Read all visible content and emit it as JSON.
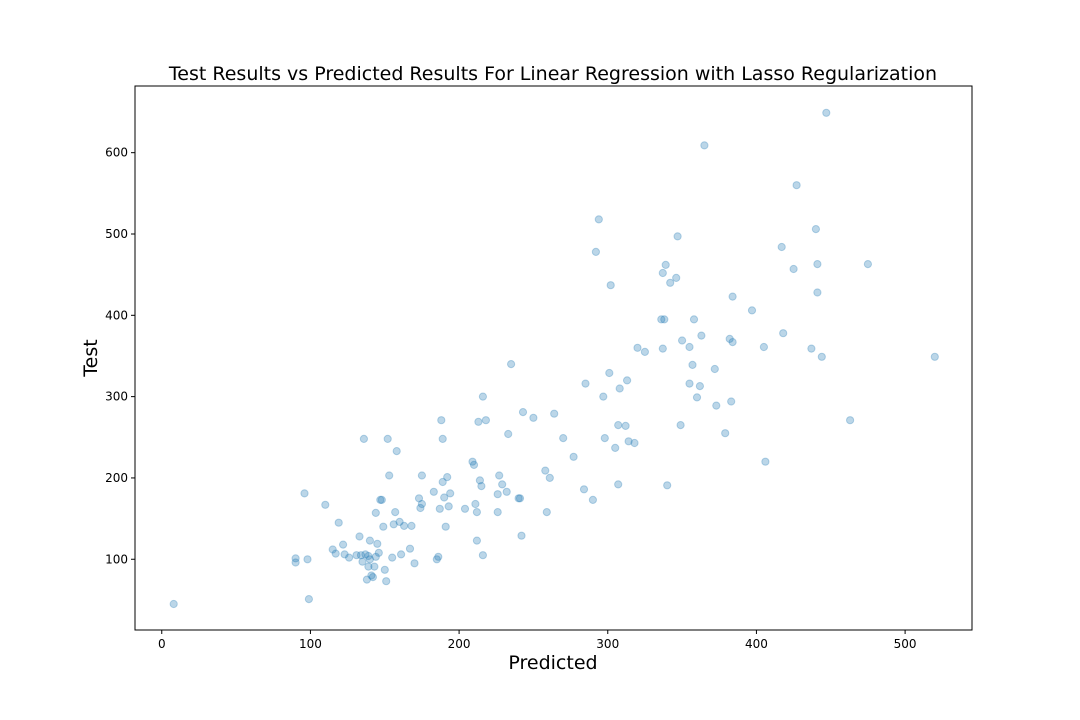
{
  "chart_data": {
    "type": "scatter",
    "title": "Test Results vs Predicted Results For Linear Regression with Lasso Regularization",
    "xlabel": "Predicted",
    "ylabel": "Test",
    "xlim": [
      -18,
      545
    ],
    "ylim": [
      13,
      682
    ],
    "xticks": [
      0,
      100,
      200,
      300,
      400,
      500
    ],
    "yticks": [
      100,
      200,
      300,
      400,
      500,
      600
    ],
    "grid": false,
    "marker_color": "#1f77b4",
    "marker_opacity": 0.3,
    "points": [
      [
        8,
        45
      ],
      [
        90,
        101
      ],
      [
        90,
        96
      ],
      [
        96,
        181
      ],
      [
        98,
        100
      ],
      [
        99,
        51
      ],
      [
        110,
        167
      ],
      [
        115,
        112
      ],
      [
        117,
        107
      ],
      [
        119,
        145
      ],
      [
        122,
        118
      ],
      [
        123,
        106
      ],
      [
        126,
        102
      ],
      [
        131,
        105
      ],
      [
        133,
        128
      ],
      [
        134,
        105
      ],
      [
        135,
        97
      ],
      [
        136,
        248
      ],
      [
        137,
        106
      ],
      [
        138,
        75
      ],
      [
        139,
        91
      ],
      [
        139,
        104
      ],
      [
        140,
        123
      ],
      [
        140,
        100
      ],
      [
        141,
        80
      ],
      [
        142,
        78
      ],
      [
        143,
        91
      ],
      [
        144,
        103
      ],
      [
        144,
        157
      ],
      [
        145,
        119
      ],
      [
        146,
        108
      ],
      [
        147,
        173
      ],
      [
        148,
        173
      ],
      [
        149,
        140
      ],
      [
        150,
        87
      ],
      [
        151,
        73
      ],
      [
        152,
        248
      ],
      [
        153,
        203
      ],
      [
        155,
        102
      ],
      [
        156,
        143
      ],
      [
        157,
        158
      ],
      [
        158,
        233
      ],
      [
        160,
        146
      ],
      [
        161,
        106
      ],
      [
        163,
        141
      ],
      [
        167,
        113
      ],
      [
        168,
        141
      ],
      [
        170,
        95
      ],
      [
        173,
        175
      ],
      [
        174,
        163
      ],
      [
        175,
        203
      ],
      [
        175,
        168
      ],
      [
        183,
        183
      ],
      [
        185,
        100
      ],
      [
        186,
        103
      ],
      [
        187,
        162
      ],
      [
        188,
        271
      ],
      [
        189,
        248
      ],
      [
        189,
        195
      ],
      [
        190,
        176
      ],
      [
        191,
        140
      ],
      [
        192,
        201
      ],
      [
        193,
        165
      ],
      [
        194,
        181
      ],
      [
        204,
        162
      ],
      [
        209,
        220
      ],
      [
        210,
        216
      ],
      [
        211,
        168
      ],
      [
        212,
        123
      ],
      [
        212,
        158
      ],
      [
        213,
        269
      ],
      [
        214,
        197
      ],
      [
        215,
        190
      ],
      [
        216,
        105
      ],
      [
        216,
        300
      ],
      [
        218,
        271
      ],
      [
        226,
        180
      ],
      [
        226,
        158
      ],
      [
        227,
        203
      ],
      [
        229,
        192
      ],
      [
        232,
        183
      ],
      [
        233,
        254
      ],
      [
        235,
        340
      ],
      [
        240,
        175
      ],
      [
        241,
        175
      ],
      [
        242,
        129
      ],
      [
        243,
        281
      ],
      [
        250,
        274
      ],
      [
        258,
        209
      ],
      [
        259,
        158
      ],
      [
        261,
        200
      ],
      [
        264,
        279
      ],
      [
        270,
        249
      ],
      [
        277,
        226
      ],
      [
        284,
        186
      ],
      [
        285,
        316
      ],
      [
        290,
        173
      ],
      [
        292,
        478
      ],
      [
        294,
        518
      ],
      [
        297,
        300
      ],
      [
        298,
        249
      ],
      [
        301,
        329
      ],
      [
        302,
        437
      ],
      [
        305,
        237
      ],
      [
        307,
        192
      ],
      [
        307,
        265
      ],
      [
        308,
        310
      ],
      [
        312,
        264
      ],
      [
        313,
        320
      ],
      [
        314,
        245
      ],
      [
        318,
        243
      ],
      [
        320,
        360
      ],
      [
        325,
        355
      ],
      [
        336,
        395
      ],
      [
        337,
        359
      ],
      [
        337,
        452
      ],
      [
        338,
        395
      ],
      [
        339,
        462
      ],
      [
        340,
        191
      ],
      [
        342,
        440
      ],
      [
        346,
        446
      ],
      [
        347,
        497
      ],
      [
        349,
        265
      ],
      [
        350,
        369
      ],
      [
        355,
        316
      ],
      [
        355,
        361
      ],
      [
        357,
        339
      ],
      [
        358,
        395
      ],
      [
        360,
        299
      ],
      [
        362,
        313
      ],
      [
        363,
        375
      ],
      [
        365,
        609
      ],
      [
        372,
        334
      ],
      [
        373,
        289
      ],
      [
        379,
        255
      ],
      [
        382,
        371
      ],
      [
        383,
        294
      ],
      [
        384,
        423
      ],
      [
        384,
        367
      ],
      [
        397,
        406
      ],
      [
        405,
        361
      ],
      [
        406,
        220
      ],
      [
        417,
        484
      ],
      [
        418,
        378
      ],
      [
        425,
        457
      ],
      [
        427,
        560
      ],
      [
        437,
        359
      ],
      [
        440,
        506
      ],
      [
        441,
        463
      ],
      [
        441,
        428
      ],
      [
        444,
        349
      ],
      [
        447,
        649
      ],
      [
        463,
        271
      ],
      [
        475,
        463
      ],
      [
        520,
        349
      ]
    ]
  }
}
